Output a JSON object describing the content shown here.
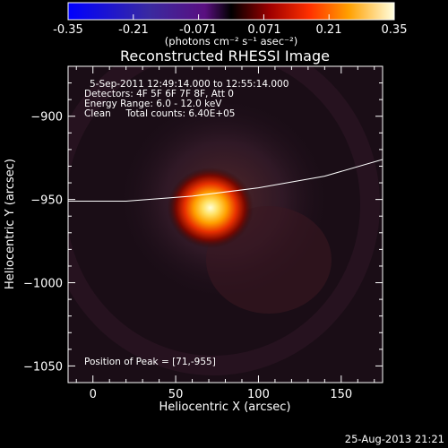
{
  "colorbar": {
    "ticks": [
      "-0.35",
      "-0.21",
      "-0.071",
      "0.071",
      "0.21",
      "0.35"
    ],
    "units": "(photons cm⁻² s⁻¹ asec⁻²)"
  },
  "header": {
    "title": "Reconstructed RHESSI Image"
  },
  "info": {
    "line1": "5-Sep-2011 12:49:14.000 to 12:55:14.000",
    "line2": "Detectors: 4F 5F 6F 7F 8F, Att 0",
    "line3": "Energy Range: 6.0 - 12.0 keV",
    "line4": "Clean     Total counts: 6.40E+05",
    "peak": "Position of Peak = [71,-955]"
  },
  "footer": {
    "timestamp": "25-Aug-2013 21:21"
  },
  "chart_data": {
    "type": "heatmap",
    "title": "Reconstructed RHESSI Image",
    "xlabel": "Heliocentric X (arcsec)",
    "ylabel": "Heliocentric Y (arcsec)",
    "xlim": [
      -15,
      175
    ],
    "ylim": [
      -1060,
      -870
    ],
    "xticks": [
      0,
      50,
      100,
      150
    ],
    "yticks": [
      -900,
      -950,
      -1000,
      -1050
    ],
    "colorbar_range": [
      -0.35,
      0.35
    ],
    "peak": {
      "x": 71,
      "y": -955
    },
    "limb": {
      "x": [
        -15,
        20,
        60,
        100,
        140,
        175
      ],
      "y": [
        -951,
        -951,
        -948,
        -943,
        -936,
        -926
      ]
    }
  }
}
